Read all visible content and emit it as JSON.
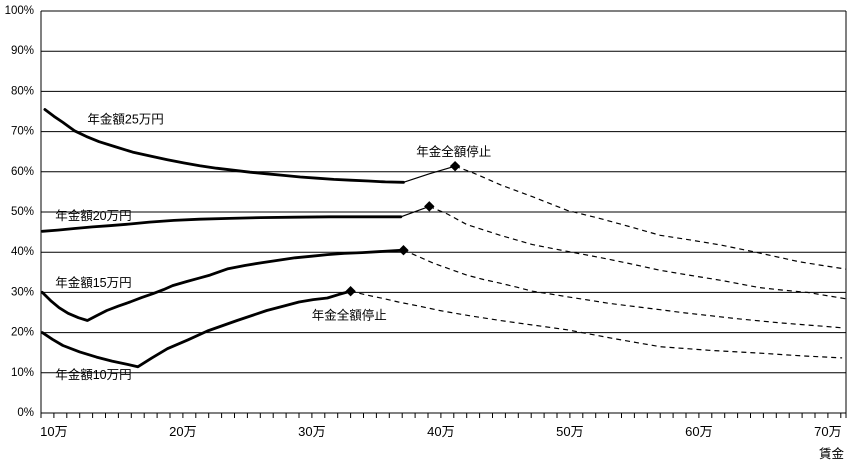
{
  "chart_data": {
    "type": "line",
    "title": "",
    "xlabel": "賃金",
    "ylabel": "",
    "grid": "horizontal",
    "legend": "none",
    "line_color": "#000000",
    "background_color": "#ffffff",
    "x_axis": {
      "unit": "万円",
      "range": [
        9,
        71.4
      ],
      "minor_tick_step": 1,
      "tick_values": [
        10,
        20,
        30,
        40,
        50,
        60,
        70
      ],
      "tick_labels": [
        "10万",
        "20万",
        "30万",
        "40万",
        "50万",
        "60万",
        "70万"
      ]
    },
    "y_axis": {
      "range": [
        0,
        100
      ],
      "grid_step": 10,
      "tick_values": [
        100,
        90,
        80,
        70,
        60,
        50,
        40,
        30,
        20,
        10,
        0
      ],
      "tick_labels": [
        "100%",
        "90%",
        "80%",
        "70%",
        "60%",
        "50%",
        "40%",
        "30%",
        "20%",
        "10%",
        "0%"
      ]
    },
    "annotations": [
      {
        "text": "年金全額停止",
        "x": 41.0,
        "y": 63.9,
        "anchor": "middle"
      },
      {
        "text": "年金全額停止",
        "x": 32.9,
        "y": 23.3,
        "anchor": "middle"
      }
    ],
    "series": [
      {
        "name": "年金額25万円",
        "label": {
          "text": "年金額25万円",
          "x": 12.6,
          "y": 72.0,
          "anchor": "start"
        },
        "solid_points": [
          [
            9.3,
            75.5
          ],
          [
            10.0,
            73.8
          ],
          [
            10.7,
            72.3
          ],
          [
            11.6,
            70.2
          ],
          [
            12.5,
            68.8
          ],
          [
            13.5,
            67.5
          ],
          [
            14.7,
            66.3
          ],
          [
            16.1,
            64.9
          ],
          [
            17.5,
            63.9
          ],
          [
            18.8,
            63.0
          ],
          [
            20.1,
            62.2
          ],
          [
            21.3,
            61.5
          ],
          [
            22.6,
            60.9
          ],
          [
            23.9,
            60.4
          ],
          [
            25.2,
            59.9
          ],
          [
            26.5,
            59.5
          ],
          [
            27.8,
            59.1
          ],
          [
            29.1,
            58.7
          ],
          [
            30.4,
            58.4
          ],
          [
            31.7,
            58.1
          ],
          [
            33.0,
            57.9
          ],
          [
            34.4,
            57.7
          ],
          [
            35.7,
            57.5
          ],
          [
            37.1,
            57.4
          ]
        ],
        "thin_rise_points": [
          [
            37.1,
            57.4
          ],
          [
            39.1,
            59.5
          ],
          [
            41.1,
            61.4
          ]
        ],
        "suspension_marker": [
          41.1,
          61.4
        ],
        "dashed_points": [
          [
            41.1,
            61.4
          ],
          [
            42.6,
            59.6
          ],
          [
            44.6,
            56.8
          ],
          [
            47.1,
            53.8
          ],
          [
            49.8,
            50.4
          ],
          [
            52.3,
            48.4
          ],
          [
            54.6,
            46.4
          ],
          [
            57.0,
            44.2
          ],
          [
            59.4,
            43.0
          ],
          [
            61.7,
            41.8
          ],
          [
            64.7,
            39.8
          ],
          [
            67.8,
            37.6
          ],
          [
            69.6,
            36.7
          ],
          [
            71.4,
            35.8
          ]
        ]
      },
      {
        "name": "年金額20万円",
        "label": {
          "text": "年金額20万円",
          "x": 10.1,
          "y": 48.0,
          "anchor": "start"
        },
        "solid_points": [
          [
            9.1,
            45.2
          ],
          [
            10.3,
            45.5
          ],
          [
            11.6,
            45.9
          ],
          [
            13.0,
            46.3
          ],
          [
            14.3,
            46.6
          ],
          [
            15.8,
            47.0
          ],
          [
            17.4,
            47.5
          ],
          [
            19.3,
            47.9
          ],
          [
            21.3,
            48.2
          ],
          [
            23.6,
            48.4
          ],
          [
            26.0,
            48.6
          ],
          [
            28.7,
            48.7
          ],
          [
            31.4,
            48.8
          ],
          [
            34.1,
            48.8
          ],
          [
            36.9,
            48.8
          ]
        ],
        "thin_rise_points": [
          [
            36.9,
            48.8
          ],
          [
            39.1,
            51.4
          ]
        ],
        "suspension_marker": [
          39.1,
          51.4
        ],
        "dashed_points": [
          [
            39.1,
            51.4
          ],
          [
            40.5,
            49.5
          ],
          [
            42.0,
            46.9
          ],
          [
            44.6,
            44.2
          ],
          [
            47.1,
            41.9
          ],
          [
            49.8,
            40.2
          ],
          [
            52.3,
            38.7
          ],
          [
            54.6,
            37.2
          ],
          [
            57.0,
            35.5
          ],
          [
            59.4,
            34.2
          ],
          [
            61.7,
            33.0
          ],
          [
            64.7,
            31.2
          ],
          [
            66.4,
            30.6
          ],
          [
            68.4,
            30.0
          ],
          [
            71.4,
            28.4
          ]
        ]
      },
      {
        "name": "年金額15万円",
        "label": {
          "text": "年金額15万円",
          "x": 10.1,
          "y": 31.3,
          "anchor": "start"
        },
        "solid_points": [
          [
            9.1,
            30.0
          ],
          [
            9.8,
            27.8
          ],
          [
            10.4,
            26.2
          ],
          [
            11.1,
            24.8
          ],
          [
            11.9,
            23.7
          ],
          [
            12.6,
            23.0
          ],
          [
            13.3,
            24.2
          ],
          [
            14.1,
            25.5
          ],
          [
            15.0,
            26.6
          ],
          [
            15.9,
            27.6
          ],
          [
            16.8,
            28.7
          ],
          [
            17.7,
            29.7
          ],
          [
            18.5,
            30.7
          ],
          [
            19.2,
            31.7
          ],
          [
            20.3,
            32.7
          ],
          [
            21.2,
            33.5
          ],
          [
            22.1,
            34.3
          ],
          [
            23.5,
            35.9
          ],
          [
            24.8,
            36.7
          ],
          [
            26.1,
            37.4
          ],
          [
            27.4,
            38.0
          ],
          [
            28.7,
            38.6
          ],
          [
            30.0,
            39.0
          ],
          [
            31.2,
            39.4
          ],
          [
            32.5,
            39.7
          ],
          [
            33.9,
            39.9
          ],
          [
            35.5,
            40.2
          ],
          [
            37.1,
            40.5
          ]
        ],
        "thin_rise_points": null,
        "suspension_marker": [
          37.1,
          40.5
        ],
        "dashed_points": [
          [
            37.1,
            40.5
          ],
          [
            38.2,
            39.0
          ],
          [
            39.4,
            37.3
          ],
          [
            40.7,
            35.8
          ],
          [
            42.0,
            34.3
          ],
          [
            43.3,
            33.2
          ],
          [
            44.6,
            32.3
          ],
          [
            45.9,
            31.3
          ],
          [
            47.1,
            30.3
          ],
          [
            48.5,
            29.6
          ],
          [
            49.8,
            28.9
          ],
          [
            51.4,
            28.1
          ],
          [
            53.0,
            27.3
          ],
          [
            55.0,
            26.5
          ],
          [
            57.0,
            25.7
          ],
          [
            58.9,
            24.9
          ],
          [
            60.9,
            24.2
          ],
          [
            62.8,
            23.5
          ],
          [
            64.7,
            22.9
          ],
          [
            66.4,
            22.4
          ],
          [
            68.0,
            22.0
          ],
          [
            69.6,
            21.6
          ],
          [
            71.1,
            21.2
          ]
        ]
      },
      {
        "name": "年金額10万円",
        "label": {
          "text": "年金額10万円",
          "x": 10.1,
          "y": 8.5,
          "anchor": "start"
        },
        "solid_points": [
          [
            9.1,
            20.0
          ],
          [
            9.9,
            18.3
          ],
          [
            10.7,
            16.8
          ],
          [
            12.0,
            15.2
          ],
          [
            13.3,
            13.9
          ],
          [
            14.5,
            12.9
          ],
          [
            15.7,
            12.1
          ],
          [
            16.5,
            11.5
          ],
          [
            17.6,
            13.7
          ],
          [
            18.8,
            16.0
          ],
          [
            20.4,
            18.2
          ],
          [
            21.9,
            20.4
          ],
          [
            24.2,
            23.0
          ],
          [
            26.5,
            25.5
          ],
          [
            27.8,
            26.6
          ],
          [
            29.0,
            27.6
          ],
          [
            30.1,
            28.2
          ],
          [
            31.2,
            28.6
          ],
          [
            32.1,
            29.5
          ],
          [
            33.0,
            30.3
          ]
        ],
        "thin_rise_points": null,
        "suspension_marker": [
          33.0,
          30.3
        ],
        "dashed_points": [
          [
            33.0,
            30.3
          ],
          [
            34.3,
            29.3
          ],
          [
            35.5,
            28.5
          ],
          [
            36.7,
            27.6
          ],
          [
            38.3,
            26.6
          ],
          [
            39.9,
            25.5
          ],
          [
            42.2,
            24.2
          ],
          [
            44.6,
            23.0
          ],
          [
            47.1,
            21.9
          ],
          [
            49.8,
            20.7
          ],
          [
            53.4,
            18.5
          ],
          [
            57.0,
            16.5
          ],
          [
            60.8,
            15.6
          ],
          [
            64.7,
            14.9
          ],
          [
            68.0,
            14.2
          ],
          [
            71.1,
            13.7
          ]
        ]
      }
    ]
  }
}
